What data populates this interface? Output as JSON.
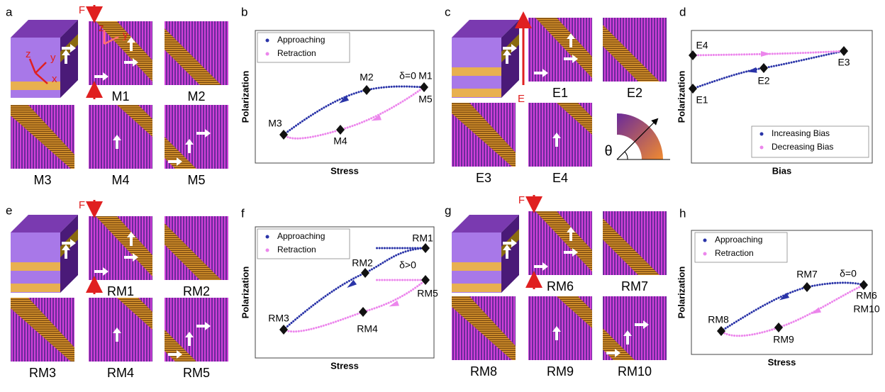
{
  "panels": [
    {
      "letter": "a",
      "force_label": "F",
      "cube_axes": [
        "z",
        "y",
        "x"
      ],
      "tile_axes": [
        "z",
        "y"
      ],
      "tiles": [
        "M1",
        "M2",
        "M3",
        "M4",
        "M5"
      ]
    },
    {
      "letter": "b",
      "y_label": "Polarization",
      "x_label": "Stress",
      "legend": [
        "Approaching",
        "Retraction"
      ],
      "points": [
        "M1",
        "M2",
        "M3",
        "M4",
        "M5"
      ],
      "annotation": "δ=0"
    },
    {
      "letter": "c",
      "field_label": "E",
      "tiles": [
        "E1",
        "E2",
        "E3",
        "E4"
      ],
      "angle_label": "θ"
    },
    {
      "letter": "d",
      "y_label": "Polarization",
      "x_label": "Bias",
      "legend": [
        "Increasing Bias",
        "Decreasing Bias"
      ],
      "points": [
        "E1",
        "E2",
        "E3",
        "E4"
      ]
    },
    {
      "letter": "e",
      "force_label": "F",
      "tiles": [
        "RM1",
        "RM2",
        "RM3",
        "RM4",
        "RM5"
      ]
    },
    {
      "letter": "f",
      "y_label": "Polarization",
      "x_label": "Stress",
      "legend": [
        "Approaching",
        "Retraction"
      ],
      "points": [
        "RM1",
        "RM2",
        "RM3",
        "RM4",
        "RM5"
      ],
      "annotation": "δ>0"
    },
    {
      "letter": "g",
      "force_label": "F",
      "tiles": [
        "RM6",
        "RM7",
        "RM8",
        "RM9",
        "RM10"
      ]
    },
    {
      "letter": "h",
      "y_label": "Polarization",
      "x_label": "Stress",
      "legend": [
        "Approaching",
        "Retraction"
      ],
      "points": [
        "RM6",
        "RM7",
        "RM8",
        "RM9",
        "RM10"
      ],
      "annotation": "δ=0"
    }
  ]
}
